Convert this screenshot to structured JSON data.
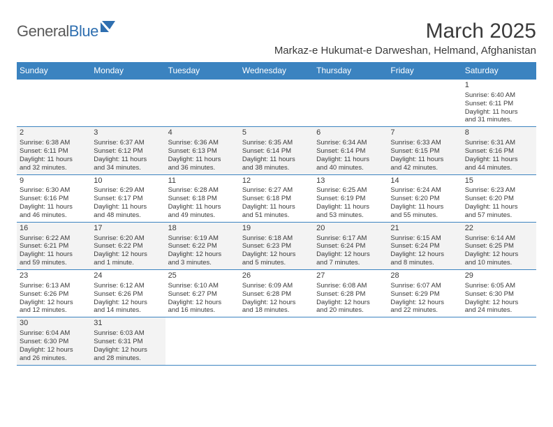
{
  "logo": {
    "part1": "General",
    "part2": "Blue"
  },
  "title": "March 2025",
  "location": "Markaz-e Hukumat-e Darweshan, Helmand, Afghanistan",
  "header_bg": "#3b83c0",
  "header_text": "#ffffff",
  "rule_color": "#3b83c0",
  "shaded_bg": "#f3f3f3",
  "page_bg": "#ffffff",
  "text_color": "#3a3a3a",
  "weekday_fontsize": 12,
  "cell_fontsize": 9.5,
  "weekdays": [
    "Sunday",
    "Monday",
    "Tuesday",
    "Wednesday",
    "Thursday",
    "Friday",
    "Saturday"
  ],
  "weeks": [
    [
      {
        "day": "",
        "sunrise": "",
        "sunset": "",
        "daylight1": "",
        "daylight2": "",
        "shaded": false
      },
      {
        "day": "",
        "sunrise": "",
        "sunset": "",
        "daylight1": "",
        "daylight2": "",
        "shaded": false
      },
      {
        "day": "",
        "sunrise": "",
        "sunset": "",
        "daylight1": "",
        "daylight2": "",
        "shaded": false
      },
      {
        "day": "",
        "sunrise": "",
        "sunset": "",
        "daylight1": "",
        "daylight2": "",
        "shaded": false
      },
      {
        "day": "",
        "sunrise": "",
        "sunset": "",
        "daylight1": "",
        "daylight2": "",
        "shaded": false
      },
      {
        "day": "",
        "sunrise": "",
        "sunset": "",
        "daylight1": "",
        "daylight2": "",
        "shaded": false
      },
      {
        "day": "1",
        "sunrise": "Sunrise: 6:40 AM",
        "sunset": "Sunset: 6:11 PM",
        "daylight1": "Daylight: 11 hours",
        "daylight2": "and 31 minutes.",
        "shaded": false
      }
    ],
    [
      {
        "day": "2",
        "sunrise": "Sunrise: 6:38 AM",
        "sunset": "Sunset: 6:11 PM",
        "daylight1": "Daylight: 11 hours",
        "daylight2": "and 32 minutes.",
        "shaded": true
      },
      {
        "day": "3",
        "sunrise": "Sunrise: 6:37 AM",
        "sunset": "Sunset: 6:12 PM",
        "daylight1": "Daylight: 11 hours",
        "daylight2": "and 34 minutes.",
        "shaded": true
      },
      {
        "day": "4",
        "sunrise": "Sunrise: 6:36 AM",
        "sunset": "Sunset: 6:13 PM",
        "daylight1": "Daylight: 11 hours",
        "daylight2": "and 36 minutes.",
        "shaded": true
      },
      {
        "day": "5",
        "sunrise": "Sunrise: 6:35 AM",
        "sunset": "Sunset: 6:14 PM",
        "daylight1": "Daylight: 11 hours",
        "daylight2": "and 38 minutes.",
        "shaded": true
      },
      {
        "day": "6",
        "sunrise": "Sunrise: 6:34 AM",
        "sunset": "Sunset: 6:14 PM",
        "daylight1": "Daylight: 11 hours",
        "daylight2": "and 40 minutes.",
        "shaded": true
      },
      {
        "day": "7",
        "sunrise": "Sunrise: 6:33 AM",
        "sunset": "Sunset: 6:15 PM",
        "daylight1": "Daylight: 11 hours",
        "daylight2": "and 42 minutes.",
        "shaded": true
      },
      {
        "day": "8",
        "sunrise": "Sunrise: 6:31 AM",
        "sunset": "Sunset: 6:16 PM",
        "daylight1": "Daylight: 11 hours",
        "daylight2": "and 44 minutes.",
        "shaded": true
      }
    ],
    [
      {
        "day": "9",
        "sunrise": "Sunrise: 6:30 AM",
        "sunset": "Sunset: 6:16 PM",
        "daylight1": "Daylight: 11 hours",
        "daylight2": "and 46 minutes.",
        "shaded": false
      },
      {
        "day": "10",
        "sunrise": "Sunrise: 6:29 AM",
        "sunset": "Sunset: 6:17 PM",
        "daylight1": "Daylight: 11 hours",
        "daylight2": "and 48 minutes.",
        "shaded": false
      },
      {
        "day": "11",
        "sunrise": "Sunrise: 6:28 AM",
        "sunset": "Sunset: 6:18 PM",
        "daylight1": "Daylight: 11 hours",
        "daylight2": "and 49 minutes.",
        "shaded": false
      },
      {
        "day": "12",
        "sunrise": "Sunrise: 6:27 AM",
        "sunset": "Sunset: 6:18 PM",
        "daylight1": "Daylight: 11 hours",
        "daylight2": "and 51 minutes.",
        "shaded": false
      },
      {
        "day": "13",
        "sunrise": "Sunrise: 6:25 AM",
        "sunset": "Sunset: 6:19 PM",
        "daylight1": "Daylight: 11 hours",
        "daylight2": "and 53 minutes.",
        "shaded": false
      },
      {
        "day": "14",
        "sunrise": "Sunrise: 6:24 AM",
        "sunset": "Sunset: 6:20 PM",
        "daylight1": "Daylight: 11 hours",
        "daylight2": "and 55 minutes.",
        "shaded": false
      },
      {
        "day": "15",
        "sunrise": "Sunrise: 6:23 AM",
        "sunset": "Sunset: 6:20 PM",
        "daylight1": "Daylight: 11 hours",
        "daylight2": "and 57 minutes.",
        "shaded": false
      }
    ],
    [
      {
        "day": "16",
        "sunrise": "Sunrise: 6:22 AM",
        "sunset": "Sunset: 6:21 PM",
        "daylight1": "Daylight: 11 hours",
        "daylight2": "and 59 minutes.",
        "shaded": true
      },
      {
        "day": "17",
        "sunrise": "Sunrise: 6:20 AM",
        "sunset": "Sunset: 6:22 PM",
        "daylight1": "Daylight: 12 hours",
        "daylight2": "and 1 minute.",
        "shaded": true
      },
      {
        "day": "18",
        "sunrise": "Sunrise: 6:19 AM",
        "sunset": "Sunset: 6:22 PM",
        "daylight1": "Daylight: 12 hours",
        "daylight2": "and 3 minutes.",
        "shaded": true
      },
      {
        "day": "19",
        "sunrise": "Sunrise: 6:18 AM",
        "sunset": "Sunset: 6:23 PM",
        "daylight1": "Daylight: 12 hours",
        "daylight2": "and 5 minutes.",
        "shaded": true
      },
      {
        "day": "20",
        "sunrise": "Sunrise: 6:17 AM",
        "sunset": "Sunset: 6:24 PM",
        "daylight1": "Daylight: 12 hours",
        "daylight2": "and 7 minutes.",
        "shaded": true
      },
      {
        "day": "21",
        "sunrise": "Sunrise: 6:15 AM",
        "sunset": "Sunset: 6:24 PM",
        "daylight1": "Daylight: 12 hours",
        "daylight2": "and 8 minutes.",
        "shaded": true
      },
      {
        "day": "22",
        "sunrise": "Sunrise: 6:14 AM",
        "sunset": "Sunset: 6:25 PM",
        "daylight1": "Daylight: 12 hours",
        "daylight2": "and 10 minutes.",
        "shaded": true
      }
    ],
    [
      {
        "day": "23",
        "sunrise": "Sunrise: 6:13 AM",
        "sunset": "Sunset: 6:26 PM",
        "daylight1": "Daylight: 12 hours",
        "daylight2": "and 12 minutes.",
        "shaded": false
      },
      {
        "day": "24",
        "sunrise": "Sunrise: 6:12 AM",
        "sunset": "Sunset: 6:26 PM",
        "daylight1": "Daylight: 12 hours",
        "daylight2": "and 14 minutes.",
        "shaded": false
      },
      {
        "day": "25",
        "sunrise": "Sunrise: 6:10 AM",
        "sunset": "Sunset: 6:27 PM",
        "daylight1": "Daylight: 12 hours",
        "daylight2": "and 16 minutes.",
        "shaded": false
      },
      {
        "day": "26",
        "sunrise": "Sunrise: 6:09 AM",
        "sunset": "Sunset: 6:28 PM",
        "daylight1": "Daylight: 12 hours",
        "daylight2": "and 18 minutes.",
        "shaded": false
      },
      {
        "day": "27",
        "sunrise": "Sunrise: 6:08 AM",
        "sunset": "Sunset: 6:28 PM",
        "daylight1": "Daylight: 12 hours",
        "daylight2": "and 20 minutes.",
        "shaded": false
      },
      {
        "day": "28",
        "sunrise": "Sunrise: 6:07 AM",
        "sunset": "Sunset: 6:29 PM",
        "daylight1": "Daylight: 12 hours",
        "daylight2": "and 22 minutes.",
        "shaded": false
      },
      {
        "day": "29",
        "sunrise": "Sunrise: 6:05 AM",
        "sunset": "Sunset: 6:30 PM",
        "daylight1": "Daylight: 12 hours",
        "daylight2": "and 24 minutes.",
        "shaded": false
      }
    ],
    [
      {
        "day": "30",
        "sunrise": "Sunrise: 6:04 AM",
        "sunset": "Sunset: 6:30 PM",
        "daylight1": "Daylight: 12 hours",
        "daylight2": "and 26 minutes.",
        "shaded": true
      },
      {
        "day": "31",
        "sunrise": "Sunrise: 6:03 AM",
        "sunset": "Sunset: 6:31 PM",
        "daylight1": "Daylight: 12 hours",
        "daylight2": "and 28 minutes.",
        "shaded": true
      },
      {
        "day": "",
        "sunrise": "",
        "sunset": "",
        "daylight1": "",
        "daylight2": "",
        "shaded": false
      },
      {
        "day": "",
        "sunrise": "",
        "sunset": "",
        "daylight1": "",
        "daylight2": "",
        "shaded": false
      },
      {
        "day": "",
        "sunrise": "",
        "sunset": "",
        "daylight1": "",
        "daylight2": "",
        "shaded": false
      },
      {
        "day": "",
        "sunrise": "",
        "sunset": "",
        "daylight1": "",
        "daylight2": "",
        "shaded": false
      },
      {
        "day": "",
        "sunrise": "",
        "sunset": "",
        "daylight1": "",
        "daylight2": "",
        "shaded": false
      }
    ]
  ]
}
